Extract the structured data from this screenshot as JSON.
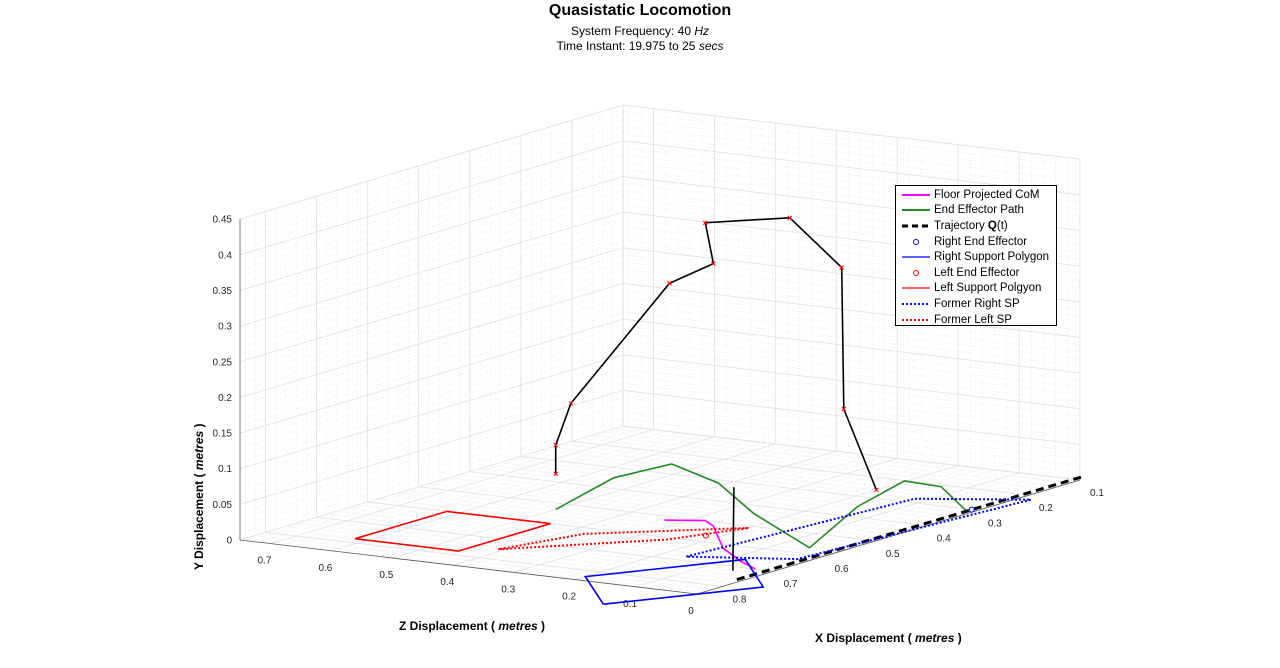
{
  "chart_data": {
    "type": "line",
    "title": "Quasistatic Locomotion",
    "subtitle_frequency": {
      "prefix": "System Frequency: 40 ",
      "unit": "Hz"
    },
    "subtitle_time": {
      "prefix": "Time Instant: 19.975 to 25 ",
      "unit": "secs"
    },
    "xlabel": {
      "prefix": "X Displacement ( ",
      "unit": "metres",
      "suffix": " )"
    },
    "ylabel": {
      "prefix": "Y Displacement ( ",
      "unit": "metres",
      "suffix": " )"
    },
    "zlabel": {
      "prefix": "Z Displacement ( ",
      "unit": "metres",
      "suffix": " )"
    },
    "xlim": [
      0.1,
      0.85
    ],
    "ylim": [
      0,
      0.45
    ],
    "zlim": [
      0,
      0.75
    ],
    "x_ticks": [
      "0.1",
      "0.2",
      "0.3",
      "0.4",
      "0.5",
      "0.6",
      "0.7",
      "0.8"
    ],
    "y_ticks": [
      "0",
      "0.05",
      "0.1",
      "0.15",
      "0.2",
      "0.25",
      "0.3",
      "0.35",
      "0.4",
      "0.45"
    ],
    "z_ticks": [
      "0",
      "0.1",
      "0.2",
      "0.3",
      "0.4",
      "0.5",
      "0.6",
      "0.7"
    ],
    "grid": true,
    "legend_position": "top-right",
    "legend": [
      {
        "label": "Floor Projected CoM",
        "style": "solid",
        "color": "#ff00ff"
      },
      {
        "label": "End Effector Path",
        "style": "solid",
        "color": "#228b22"
      },
      {
        "label_prefix": "Trajectory ",
        "label_bold": "Q",
        "label_suffix": "(t)",
        "style": "dashed",
        "color": "#000000"
      },
      {
        "label": "Right End Effector",
        "style": "marker",
        "color": "#0000ff"
      },
      {
        "label": "Right Support Polygon",
        "style": "solid",
        "color": "#0000ff"
      },
      {
        "label": "Left End Effector",
        "style": "marker",
        "color": "#ff0000"
      },
      {
        "label": "Left Support Polgyon",
        "style": "solid",
        "color": "#ff0000"
      },
      {
        "label": "Former Right SP",
        "style": "dotted",
        "color": "#0000ff"
      },
      {
        "label": "Former Left SP",
        "style": "dotted",
        "color": "#ff0000"
      }
    ],
    "series": [
      {
        "name": "Floor Projected CoM",
        "color": "#ff00ff",
        "style": "solid",
        "points": [
          [
            0.52,
            0,
            0.33
          ],
          [
            0.5,
            0,
            0.28
          ],
          [
            0.52,
            0,
            0.25
          ],
          [
            0.62,
            0,
            0.15
          ],
          [
            0.67,
            0,
            0.08
          ],
          [
            0.7,
            0,
            0.03
          ]
        ]
      },
      {
        "name": "End Effector Path",
        "color": "#228b22",
        "style": "solid",
        "points": [
          [
            0.53,
            0,
            0.5
          ],
          [
            0.5,
            0.045,
            0.43
          ],
          [
            0.47,
            0.065,
            0.36
          ],
          [
            0.45,
            0.04,
            0.3
          ],
          [
            0.44,
            0,
            0.25
          ],
          [
            0.57,
            0,
            0.05
          ],
          [
            0.5,
            0.045,
            0.03
          ],
          [
            0.42,
            0.065,
            0.02
          ],
          [
            0.36,
            0.045,
            0.01
          ],
          [
            0.31,
            0,
            0.01
          ]
        ]
      },
      {
        "name": "Trajectory Q(t)",
        "color": "#000000",
        "style": "dashed",
        "points": [
          [
            0.76,
            0,
            0.01
          ],
          [
            0.62,
            0,
            0.01
          ],
          [
            0.48,
            0,
            0.01
          ],
          [
            0.35,
            0,
            0.01
          ],
          [
            0.22,
            0,
            0.01
          ],
          [
            0.08,
            0,
            0.01
          ]
        ]
      },
      {
        "name": "Right Support Polygon",
        "color": "#0000ff",
        "style": "solid",
        "points": [
          [
            0.95,
            0,
            0.07
          ],
          [
            0.78,
            0,
            -0.05
          ],
          [
            0.66,
            0,
            0.08
          ],
          [
            0.83,
            0,
            0.2
          ],
          [
            0.95,
            0,
            0.07
          ]
        ]
      },
      {
        "name": "Left Support Polgyon",
        "color": "#ff0000",
        "style": "solid",
        "points": [
          [
            0.78,
            0,
            0.62
          ],
          [
            0.6,
            0,
            0.62
          ],
          [
            0.6,
            0,
            0.45
          ],
          [
            0.78,
            0,
            0.45
          ],
          [
            0.78,
            0,
            0.62
          ]
        ]
      },
      {
        "name": "Former Right SP",
        "color": "#0000ff",
        "style": "dotted",
        "points": [
          [
            0.68,
            0,
            0.16
          ],
          [
            0.28,
            0,
            0.12
          ],
          [
            0.22,
            0,
            -0.02
          ],
          [
            0.63,
            0,
            0.02
          ],
          [
            0.68,
            0,
            0.16
          ]
        ]
      },
      {
        "name": "Former Left SP",
        "color": "#ff0000",
        "style": "dotted",
        "points": [
          [
            0.75,
            0,
            0.41
          ],
          [
            0.61,
            0,
            0.25
          ],
          [
            0.51,
            0,
            0.2
          ],
          [
            0.63,
            0,
            0.37
          ],
          [
            0.75,
            0,
            0.41
          ]
        ]
      },
      {
        "name": "Left Leg",
        "color": "#000000",
        "style": "solid",
        "points": [
          [
            0.53,
            0.05,
            0.5
          ],
          [
            0.53,
            0.09,
            0.5
          ],
          [
            0.56,
            0.16,
            0.45
          ],
          [
            0.51,
            0.33,
            0.33
          ],
          [
            0.46,
            0.35,
            0.3
          ],
          [
            0.44,
            0.4,
            0.33
          ],
          [
            0.37,
            0.4,
            0.25
          ],
          [
            0.34,
            0.33,
            0.19
          ],
          [
            0.3,
            0.12,
            0.22
          ],
          [
            0.26,
            0.0,
            0.2
          ]
        ],
        "marker_color": "#ff0000"
      },
      {
        "name": "Right Leg",
        "color": "#000000",
        "style": "solid",
        "points": [
          [
            0.72,
            0.0,
            0.05
          ],
          [
            0.73,
            0.12,
            0.04
          ]
        ]
      }
    ],
    "markers": [
      {
        "name": "Right End Effector",
        "color": "#0000ff",
        "points": [
          [
            0.3,
            0,
            0.01
          ]
        ]
      },
      {
        "name": "Left End Effector",
        "color": "#ff0000",
        "points": [
          [
            0.57,
            0,
            0.22
          ]
        ]
      }
    ]
  }
}
